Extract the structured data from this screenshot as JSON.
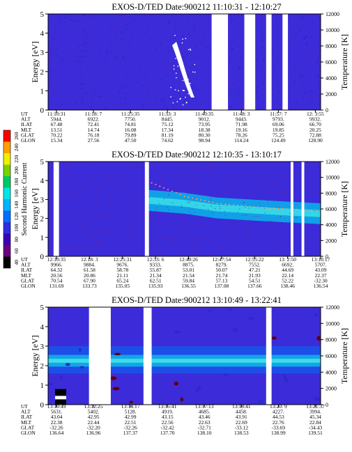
{
  "chart_data": [
    {
      "type": "heatmap",
      "title": "EXOS-D/TED   Date:900212   11:10:31 - 12:10:27",
      "ylabel": "Energy [eV]",
      "ylabel_right": "Temperature [K]",
      "ylim": [
        0,
        5
      ],
      "ylim_right": [
        0,
        12000
      ],
      "yticks": [
        "0",
        "1",
        "2",
        "3",
        "4",
        "5"
      ],
      "yticks_right": [
        "0",
        "2000",
        "4000",
        "6000",
        "8000",
        "10000",
        "12000"
      ],
      "row_labels": [
        "UT",
        "ALT",
        "ILAT",
        "MLT",
        "GLAT",
        "GLON"
      ],
      "columns": [
        [
          "11:10:31",
          "5944.",
          "67.48",
          "13.51",
          "70.22",
          "15.34"
        ],
        [
          "11:18: 7",
          "6922.",
          "72.41",
          "14.74",
          "76.18",
          "27.56"
        ],
        [
          "11:25:35",
          "7750.",
          "74.81",
          "16.08",
          "79.89",
          "47.50"
        ],
        [
          "11:33: 3",
          "8445.",
          "75.12",
          "17.34",
          "81.19",
          "74.62"
        ],
        [
          "11:40:35",
          "9012.",
          "73.95",
          "18.38",
          "80.30",
          "98.94"
        ],
        [
          "11:48: 3",
          "9443.",
          "71.98",
          "19.16",
          "78.26",
          "114.24"
        ],
        [
          "11:57: 7",
          "9793.",
          "69.06",
          "19.85",
          "75.25",
          "124.49"
        ],
        [
          "12: 3:55",
          "9932.",
          "66.70",
          "20.25",
          "72.88",
          "128.90"
        ]
      ],
      "data_gaps": [
        [
          0.6,
          0.66
        ],
        [
          0.72,
          0.76
        ],
        [
          0.8,
          0.82
        ],
        [
          0.86,
          0.88
        ]
      ]
    },
    {
      "type": "heatmap",
      "title": "EXOS-D/TED   Date:900212   12:10:35 - 13:10:17",
      "ylabel": "Energy [eV]",
      "ylabel_right": "Temperature [K]",
      "ylim": [
        0,
        5
      ],
      "ylim_right": [
        0,
        12000
      ],
      "yticks": [
        "0",
        "1",
        "2",
        "3",
        "4",
        "5"
      ],
      "yticks_right": [
        "0",
        "2000",
        "4000",
        "6000",
        "8000",
        "10000",
        "12000"
      ],
      "row_labels": [
        "UT",
        "ALT",
        "ILAT",
        "MLT",
        "GLAT",
        "GLON"
      ],
      "columns": [
        [
          "12:10:35",
          "9966.",
          "64.32",
          "20.56",
          "70.54",
          "131.69"
        ],
        [
          "12:18: 3",
          "9884.",
          "61.58",
          "20.86",
          "67.90",
          "133.73"
        ],
        [
          "12:25:31",
          "9676.",
          "58.78",
          "21.11",
          "65.24",
          "135.05"
        ],
        [
          "12:33: 6",
          "9333.",
          "55.87",
          "21.34",
          "62.51",
          "135.93"
        ],
        [
          "12:40:26",
          "8875.",
          "53.01",
          "21.54",
          "59.84",
          "136.55"
        ],
        [
          "12:47:54",
          "8279.",
          "50.07",
          "21.74",
          "57.13",
          "137.08"
        ],
        [
          "12:55:22",
          "7552.",
          "47.21",
          "21.93",
          "54.51",
          "137.66"
        ],
        [
          "13: 2:50",
          "6692.",
          "44.69",
          "22.14",
          "52.22",
          "138.46"
        ],
        [
          "13:10:17",
          "5707.",
          "43.09",
          "22.37",
          "-32.30",
          "136.54"
        ]
      ],
      "data_gaps": [
        [
          0.02,
          0.04
        ],
        [
          0.355,
          0.37
        ],
        [
          0.89,
          0.9
        ],
        [
          0.93,
          0.94
        ]
      ],
      "trend_temperature_K": [
        [
          0.38,
          9300
        ],
        [
          0.5,
          7600
        ],
        [
          0.62,
          6700
        ],
        [
          0.74,
          6300
        ],
        [
          0.86,
          6000
        ],
        [
          1.0,
          5800
        ]
      ]
    },
    {
      "type": "heatmap",
      "title": "EXOS-D/TED   Date:900212   13:10:49 - 13:22:41",
      "ylabel": "Energy [eV]",
      "ylabel_right": "Temperature [K]",
      "ylim": [
        0,
        5
      ],
      "ylim_right": [
        0,
        12000
      ],
      "yticks": [
        "0",
        "1",
        "2",
        "3",
        "4",
        "5"
      ],
      "yticks_right": [
        "0",
        "2000",
        "4000",
        "6000",
        "8000",
        "10000",
        "12000"
      ],
      "row_labels": [
        "UT",
        "ALT",
        "ILAT",
        "MLT",
        "GLAT",
        "GLON"
      ],
      "columns": [
        [
          "13:10:49",
          "5631.",
          "43.04",
          "22.38",
          "-32.26",
          "136.64"
        ],
        [
          "13:12:25",
          "5402.",
          "42.95",
          "22.44",
          "-32.20",
          "136.96"
        ],
        [
          "13:14:17",
          "5128.",
          "42.99",
          "22.51",
          "-32.26",
          "137.37"
        ],
        [
          "13:15:41",
          "4919.",
          "43.15",
          "22.56",
          "-32.42",
          "137.70"
        ],
        [
          "13:17:13",
          "4685.",
          "43.46",
          "22.63",
          "-32.71",
          "138.10"
        ],
        [
          "13:18:41",
          "4458.",
          "43.91",
          "22.69",
          "-33.12",
          "138.53"
        ],
        [
          "13:20: 9",
          "4227.",
          "44.53",
          "22.76",
          "-33.69",
          "138.99"
        ],
        [
          "13:21:37",
          "3994.",
          "45.34",
          "22.84",
          "-34.43",
          "139.51"
        ]
      ],
      "data_gaps": [
        [
          0.15,
          0.23
        ],
        [
          0.35,
          0.38
        ],
        [
          0.8,
          0.82
        ]
      ]
    }
  ],
  "colorbar": {
    "label": "Second Harmonic Current",
    "ticks": [
      "40",
      "60",
      "80",
      "100",
      "120",
      "140",
      "160",
      "180",
      "200",
      "220",
      "240",
      "260"
    ],
    "colors": [
      "#000000",
      "#6b0080",
      "#3c00b4",
      "#2d2de6",
      "#0070ff",
      "#00b4ff",
      "#00e6e6",
      "#00c864",
      "#7ad200",
      "#f0f000",
      "#ffa000",
      "#ff0000"
    ]
  }
}
